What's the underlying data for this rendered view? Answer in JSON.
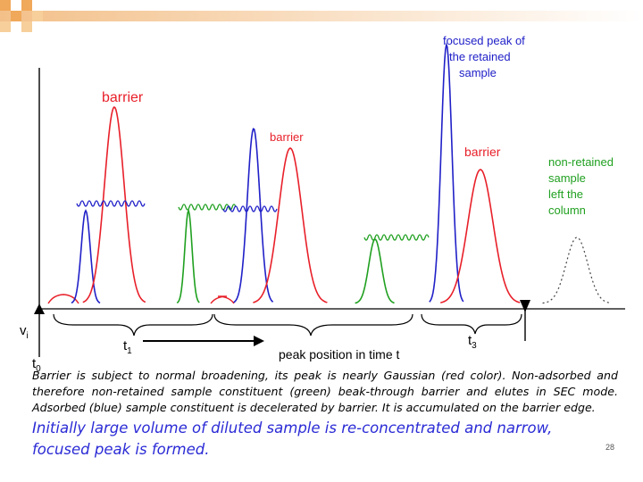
{
  "labels": {
    "focused_peak": [
      "focused peak of",
      "the retained",
      "sample"
    ],
    "barrier_1": "barrier",
    "barrier_2": "barrier",
    "barrier_3": "barrier",
    "non_retained": [
      "non-retained",
      "sample",
      "left the",
      "column"
    ],
    "vi": "v",
    "vi_sub": "i",
    "t0": "t",
    "t0_sub": "0",
    "t1": "t",
    "t1_sub": "1",
    "t3": "t",
    "t3_sub": "3",
    "peak_position": "peak position in time t"
  },
  "text": {
    "caption": "Barrier is subject to normal broadening, its peak is nearly Gaussian (red color). Non-adsorbed and therefore non-retained sample constituent (green) beak-through barrier and elutes in SEC mode. Adsorbed (blue) sample constituent is decelerated by barrier. It is accumulated on the barrier edge.",
    "highlight": "Initially large volume of diluted sample is re-concentrated and narrow, focused peak is formed.",
    "page_number": "28"
  },
  "colors": {
    "barrier": "#e8202a",
    "adsorbed": "#2020c8",
    "non_retained": "#20a020",
    "label_red": "#e8202a",
    "label_blue": "#2020c8",
    "label_green": "#20a020",
    "highlight": "#2b2bd6"
  }
}
